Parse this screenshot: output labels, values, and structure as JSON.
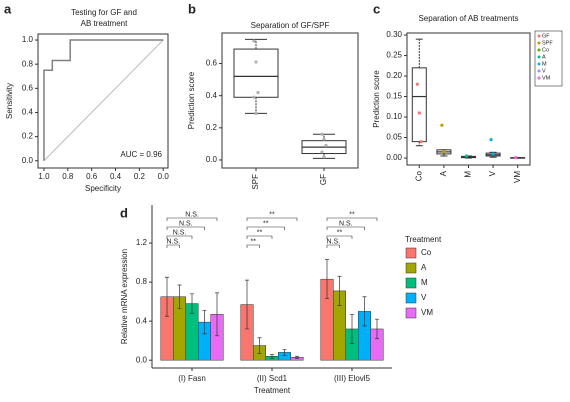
{
  "chart_data": [
    {
      "type": "line",
      "panel_label": "a",
      "title": [
        "Testing for GF and",
        "AB treatment"
      ],
      "x_label": "Specificity",
      "y_label": "Sensitivity",
      "annotation": "AUC = 0.96",
      "color": "#808080",
      "x": [
        1,
        1,
        0.93,
        0.93,
        0.78,
        0.78,
        0
      ],
      "values": [
        0,
        0.75,
        0.75,
        0.83,
        0.83,
        1,
        1
      ],
      "xlim": [
        1.05,
        -0.04
      ],
      "ylim": [
        -0.06,
        1.05
      ],
      "xticks": [
        {
          "value": 1,
          "label": "1.0"
        },
        0.8,
        0.6,
        0.4,
        0.2,
        {
          "value": 0,
          "label": "0.0"
        }
      ],
      "yticks": [
        {
          "value": 0,
          "label": "0.0"
        },
        0.2,
        0.4,
        0.6,
        0.8,
        {
          "value": 1,
          "label": "1.0"
        }
      ]
    },
    {
      "type": "box",
      "panel_label": "b",
      "title": "Separation of GF/SPF",
      "y_label": "Prediction score",
      "categories": [
        "SPF",
        "GF"
      ],
      "point_color": "#b0b0b0",
      "boxes": [
        {
          "whisker_low": 0.29,
          "q1": 0.39,
          "median": 0.52,
          "q3": 0.69,
          "whisker_high": 0.75,
          "points": [
            0.74,
            0.61,
            0.42,
            0.39,
            0.29
          ]
        },
        {
          "whisker_low": 0.01,
          "q1": 0.04,
          "median": 0.08,
          "q3": 0.12,
          "whisker_high": 0.16,
          "points": [
            0.16,
            0.13,
            0.09,
            0.05,
            0.02
          ]
        }
      ],
      "ylim": [
        -0.05,
        0.79
      ],
      "yticks": [
        {
          "value": 0,
          "label": "0.0"
        },
        0.2,
        0.4,
        0.6
      ]
    },
    {
      "type": "box",
      "panel_label": "c",
      "title": "Separation of AB treatments",
      "y_label": "Prediction score",
      "categories": [
        "Co",
        "A",
        "M",
        "V",
        "VM"
      ],
      "boxes": [
        {
          "whisker_low": 0.03,
          "q1": 0.04,
          "median": 0.15,
          "q3": 0.22,
          "whisker_high": 0.29,
          "points": [
            0.18,
            0.11,
            0.04
          ],
          "point_color": "#F8766D"
        },
        {
          "whisker_low": 0.005,
          "q1": 0.01,
          "median": 0.015,
          "q3": 0.02,
          "whisker_high": 0.02,
          "points": [
            0.08,
            0.015
          ],
          "point_color": "#C49A00"
        },
        {
          "whisker_low": 0,
          "q1": 0.001,
          "median": 0.002,
          "q3": 0.004,
          "whisker_high": 0.005,
          "points": [
            0.005
          ],
          "point_color": "#00C094"
        },
        {
          "whisker_low": 0.002,
          "q1": 0.005,
          "median": 0.008,
          "q3": 0.012,
          "whisker_high": 0.014,
          "points": [
            0.045,
            0.01
          ],
          "point_color": "#00B6EB"
        },
        {
          "whisker_low": 0,
          "q1": 0,
          "median": 0,
          "q3": 0.001,
          "whisker_high": 0.001,
          "points": [
            0.001
          ],
          "point_color": "#FB61D7"
        }
      ],
      "legend": [
        {
          "name": "GF",
          "color": "#F8766D"
        },
        {
          "name": "SPF",
          "color": "#C49A00"
        },
        {
          "name": "Co",
          "color": "#53B400"
        },
        {
          "name": "A",
          "color": "#00C094"
        },
        {
          "name": "M",
          "color": "#00B6EB"
        },
        {
          "name": "V",
          "color": "#A58AFF"
        },
        {
          "name": "VM",
          "color": "#FB61D7"
        }
      ],
      "ylim": [
        -0.017,
        0.305
      ],
      "yticks": [
        {
          "value": 0,
          "label": "0.00"
        },
        0.05,
        {
          "value": 0.1,
          "label": "0.10"
        },
        0.15,
        {
          "value": 0.2,
          "label": "0.20"
        },
        0.25,
        {
          "value": 0.3,
          "label": "0.30"
        }
      ]
    },
    {
      "type": "bar",
      "panel_label": "d",
      "y_label": "Relative mRNA expression",
      "x_label": "Treatment",
      "legend_title": "Treatment",
      "categories": [
        "(I) Fasn",
        "(II) Scd1",
        "(III) Elovl5"
      ],
      "series": [
        {
          "name": "Co",
          "color": "#F8766D",
          "values": [
            0.65,
            0.57,
            0.83
          ],
          "errors": [
            0.2,
            0.25,
            0.2
          ]
        },
        {
          "name": "A",
          "color": "#A3A500",
          "values": [
            0.65,
            0.15,
            0.71
          ],
          "errors": [
            0.12,
            0.08,
            0.15
          ]
        },
        {
          "name": "M",
          "color": "#00BF7D",
          "values": [
            0.58,
            0.04,
            0.32
          ],
          "errors": [
            0.1,
            0.02,
            0.15
          ]
        },
        {
          "name": "V",
          "color": "#00B0F6",
          "values": [
            0.39,
            0.08,
            0.5
          ],
          "errors": [
            0.12,
            0.03,
            0.15
          ]
        },
        {
          "name": "VM",
          "color": "#E76BF3",
          "values": [
            0.47,
            0.03,
            0.32
          ],
          "errors": [
            0.22,
            0.01,
            0.1
          ]
        }
      ],
      "significance": [
        [
          "N.S.",
          "N.S.",
          "N.S.",
          "N.S."
        ],
        [
          "**",
          "**",
          "**",
          "**"
        ],
        [
          "N.S.",
          "**",
          "N.S.",
          "**"
        ]
      ],
      "ylim": [
        -0.08,
        1.59
      ],
      "yticks": [
        {
          "value": 0,
          "label": "0.0"
        },
        0.4,
        0.8,
        1.2
      ]
    }
  ]
}
